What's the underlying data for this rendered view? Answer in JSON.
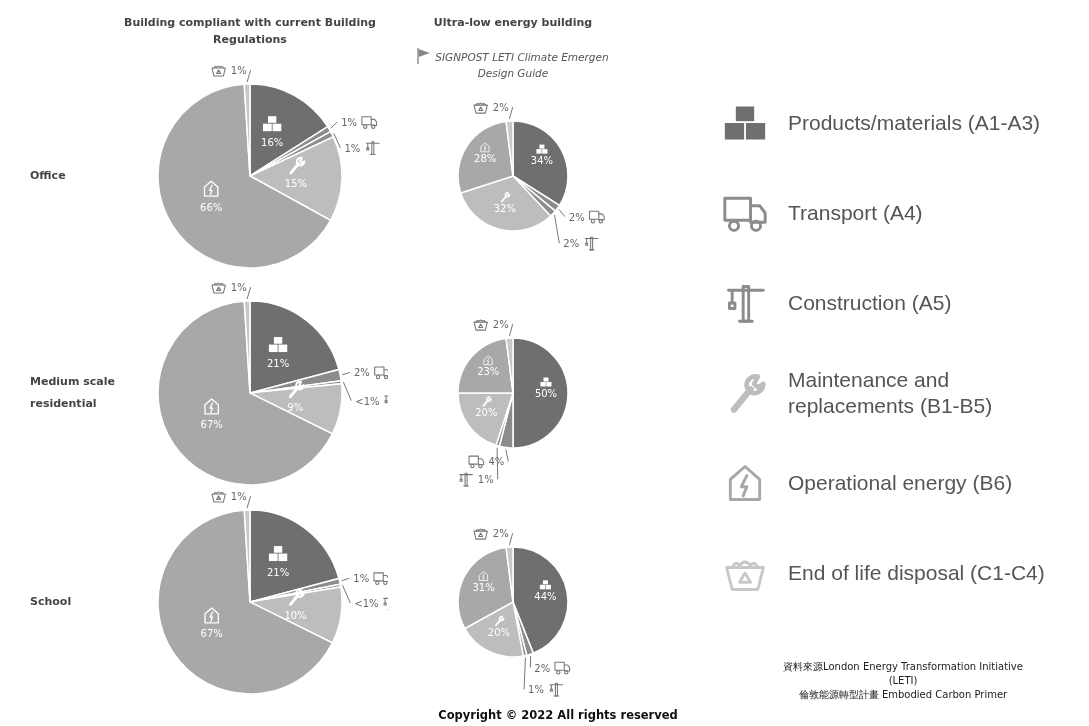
{
  "chart_data": [
    {
      "type": "pie",
      "title": "Building compliant with current Building Regulations",
      "ylabel": "Office",
      "legend": "right",
      "categories": [
        "Products/materials (A1-A3)",
        "Transport (A4)",
        "Construction (A5)",
        "Maintenance and replacements (B1-B5)",
        "Operational energy (B6)",
        "End of life disposal (C1-C4)"
      ],
      "values": [
        16,
        1,
        1,
        15,
        66,
        1
      ],
      "value_labels": [
        "16%",
        "1%",
        "1%",
        "15%",
        "66%",
        "1%"
      ],
      "colors": [
        "#6f6f6f",
        "#8c8c8c",
        "#8c8c8c",
        "#bdbdbd",
        "#a8a8a8",
        "#c8c8c8"
      ]
    },
    {
      "type": "pie",
      "title": "Ultra-low energy building",
      "subtitle": "SIGNPOST LETI Climate Emergen Design Guide",
      "categories": [
        null,
        null,
        null,
        null,
        null,
        null
      ],
      "values": [
        34,
        2,
        2,
        32,
        28,
        2
      ],
      "value_labels": [
        "34%",
        "2%",
        "2%",
        "32%",
        "28%",
        "2%"
      ],
      "colors": [
        "#6f6f6f",
        "#8c8c8c",
        "#8c8c8c",
        "#bdbdbd",
        "#a8a8a8",
        "#c8c8c8"
      ]
    },
    {
      "type": "pie",
      "ylabel": "Medium scale residential",
      "categories": [
        null,
        null,
        null,
        null,
        null,
        null
      ],
      "values": [
        21,
        2,
        0.5,
        9,
        67,
        1
      ],
      "value_labels": [
        "21%",
        "2%",
        "<1%",
        "9%",
        "67%",
        "1%"
      ],
      "colors": [
        "#6f6f6f",
        "#8c8c8c",
        "#8c8c8c",
        "#bdbdbd",
        "#a8a8a8",
        "#c8c8c8"
      ]
    },
    {
      "type": "pie",
      "categories": [
        null,
        null,
        null,
        null,
        null,
        null
      ],
      "values": [
        50,
        4,
        1,
        20,
        23,
        2
      ],
      "value_labels": [
        "50%",
        "4%",
        "1%",
        "20%",
        "23%",
        "2%"
      ],
      "colors": [
        "#6f6f6f",
        "#8c8c8c",
        "#8c8c8c",
        "#bdbdbd",
        "#a8a8a8",
        "#c8c8c8"
      ]
    },
    {
      "type": "pie",
      "ylabel": "School",
      "categories": [
        null,
        null,
        null,
        null,
        null,
        null
      ],
      "values": [
        21,
        1,
        0.5,
        10,
        67,
        1
      ],
      "value_labels": [
        "21%",
        "1%",
        "<1%",
        "10%",
        "67%",
        "1%"
      ],
      "colors": [
        "#6f6f6f",
        "#8c8c8c",
        "#8c8c8c",
        "#bdbdbd",
        "#a8a8a8",
        "#c8c8c8"
      ]
    },
    {
      "type": "pie",
      "categories": [
        null,
        null,
        null,
        null,
        null,
        null
      ],
      "values": [
        44,
        2,
        1,
        20,
        31,
        2
      ],
      "value_labels": [
        "44%",
        "2%",
        "1%",
        "20%",
        "31%",
        "2%"
      ],
      "colors": [
        "#6f6f6f",
        "#8c8c8c",
        "#8c8c8c",
        "#bdbdbd",
        "#a8a8a8",
        "#c8c8c8"
      ],
      "annotations": [
        "資料來源London Energy Transformation Initiative (LETI)\n倫敦能源轉型計畫 Embodied Carbon Primer",
        "Copyright © 2022 All rights reserved"
      ]
    }
  ]
}
